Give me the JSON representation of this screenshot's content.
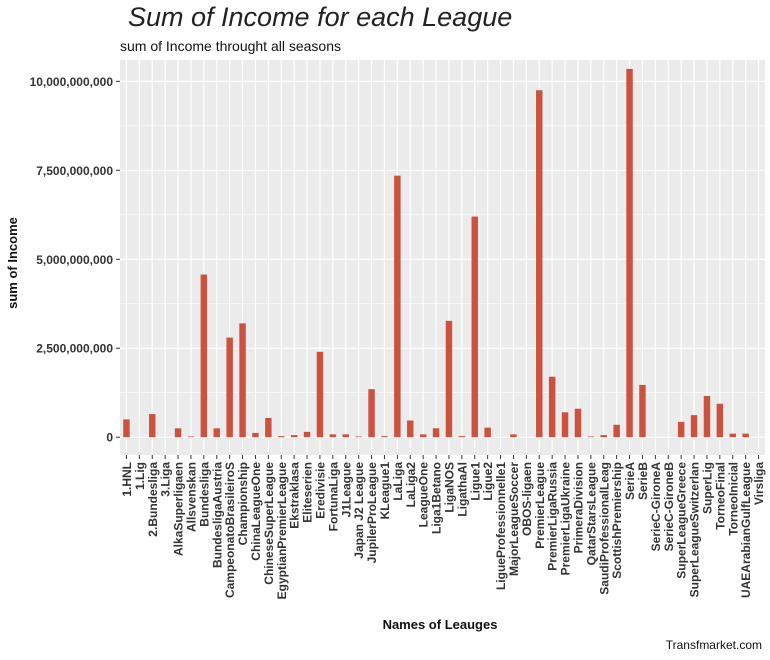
{
  "chart_data": {
    "type": "bar",
    "title": "Sum of Income for each League",
    "subtitle": "sum of Income throught all seasons",
    "xlabel": "Names of Leauges",
    "ylabel": "sum of Income",
    "caption": "Transfmarket.com",
    "bar_color": "#cc5240",
    "panel_color": "#ebebeb",
    "grid": true,
    "ylim": [
      -500000000,
      10600000000
    ],
    "y_ticks": [
      0,
      2500000000,
      5000000000,
      7500000000,
      10000000000
    ],
    "y_tick_labels": [
      "0",
      "2,500,000,000",
      "5,000,000,000",
      "7,500,000,000",
      "10,000,000,000"
    ],
    "categories": [
      "1.HNL",
      "1.Lig",
      "2.Bundesliga",
      "3.Liga",
      "AlkaSuperligaen",
      "Allsvenskan",
      "Bundesliga",
      "BundesligaAustria",
      "CampeonatoBrasileiroS",
      "Championship",
      "ChinaLeagueOne",
      "ChineseSuperLeague",
      "EgyptianPremierLeague",
      "Ekstraklasa",
      "Eliteserien",
      "Eredivisie",
      "FortunaLiga",
      "J1League",
      "Japan J2 League",
      "JupilerProLeague",
      "KLeague1",
      "LaLiga",
      "LaLiga2",
      "LeagueOne",
      "Liga1Betano",
      "LigaNOS",
      "LigathaAl",
      "Ligue1",
      "Ligue2",
      "LigueProfessionnelle1",
      "MajorLeagueSoccer",
      "OBOS-ligaen",
      "PremierLeague",
      "PremierLigaRussia",
      "PremierLigaUkraine",
      "PrimeraDivision",
      "QatarStarsLeague",
      "SaudiProfessionalLeag",
      "ScottishPremiership",
      "SerieA",
      "SerieB",
      "SerieC-GironeA",
      "SerieC-GironeB",
      "SuperLeagueGreece",
      "SuperLeagueSwitzerlan",
      "SuperLig",
      "TorneoFinal",
      "TorneoInicial",
      "UAEArabianGulfLeague",
      "Virsliga"
    ],
    "values": [
      500000000,
      0,
      650000000,
      0,
      250000000,
      20000000,
      4570000000,
      250000000,
      2800000000,
      3200000000,
      120000000,
      540000000,
      30000000,
      60000000,
      150000000,
      2400000000,
      80000000,
      80000000,
      20000000,
      1350000000,
      30000000,
      7350000000,
      470000000,
      80000000,
      250000000,
      3270000000,
      30000000,
      6200000000,
      270000000,
      0,
      80000000,
      0,
      9750000000,
      1700000000,
      700000000,
      800000000,
      20000000,
      60000000,
      350000000,
      10350000000,
      1470000000,
      0,
      0,
      430000000,
      620000000,
      1160000000,
      940000000,
      100000000,
      100000000,
      0
    ]
  }
}
